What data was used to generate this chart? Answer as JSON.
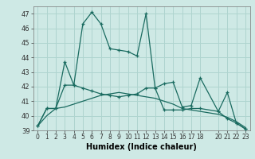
{
  "xlabel": "Humidex (Indice chaleur)",
  "background_color": "#cee9e5",
  "grid_color": "#afd4cf",
  "line_color": "#1a6b60",
  "ylim": [
    39,
    47.5
  ],
  "yticks": [
    39,
    40,
    41,
    42,
    43,
    44,
    45,
    46,
    47
  ],
  "xlim": [
    -0.5,
    23.5
  ],
  "xticks": [
    0,
    1,
    2,
    3,
    4,
    5,
    6,
    7,
    8,
    9,
    10,
    11,
    12,
    13,
    14,
    15,
    16,
    17,
    18,
    20,
    21,
    22,
    23
  ],
  "series1_x": [
    0,
    1,
    2,
    3,
    4,
    5,
    6,
    7,
    8,
    9,
    10,
    11,
    12,
    13,
    14,
    15,
    16,
    17,
    18,
    20,
    21,
    22,
    23
  ],
  "series1_y": [
    39.3,
    40.5,
    40.5,
    43.7,
    42.1,
    46.3,
    47.1,
    46.3,
    44.6,
    44.5,
    44.4,
    44.1,
    47.0,
    41.9,
    42.2,
    42.3,
    40.6,
    40.7,
    42.6,
    40.3,
    41.6,
    39.5,
    39.1
  ],
  "series2_x": [
    0,
    1,
    2,
    3,
    4,
    5,
    6,
    7,
    8,
    9,
    10,
    11,
    12,
    13,
    14,
    15,
    16,
    17,
    18,
    20,
    21,
    22,
    23
  ],
  "series2_y": [
    39.3,
    40.5,
    40.5,
    42.1,
    42.1,
    41.9,
    41.7,
    41.5,
    41.4,
    41.3,
    41.4,
    41.5,
    41.9,
    41.9,
    40.4,
    40.4,
    40.4,
    40.5,
    40.5,
    40.3,
    39.8,
    39.5,
    39.1
  ],
  "series3_x": [
    0,
    1,
    2,
    3,
    4,
    5,
    6,
    7,
    8,
    9,
    10,
    11,
    12,
    13,
    14,
    15,
    16,
    17,
    18,
    20,
    21,
    22,
    23
  ],
  "series3_y": [
    39.3,
    40.0,
    40.5,
    40.6,
    40.8,
    41.0,
    41.2,
    41.4,
    41.5,
    41.6,
    41.5,
    41.4,
    41.3,
    41.2,
    41.0,
    40.8,
    40.5,
    40.4,
    40.3,
    40.1,
    39.9,
    39.6,
    39.2
  ]
}
